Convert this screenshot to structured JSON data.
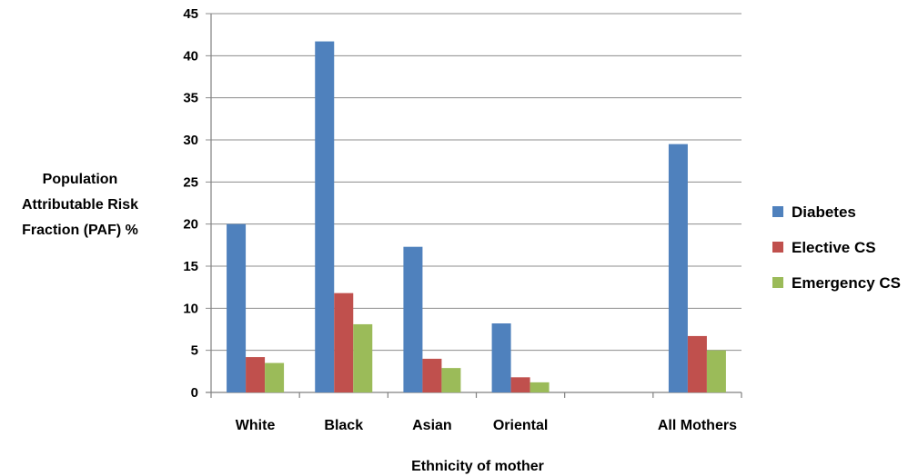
{
  "chart_data": {
    "type": "bar",
    "title": "",
    "categories": [
      "White",
      "Black",
      "Asian",
      "Oriental",
      "",
      "All Mothers"
    ],
    "series": [
      {
        "name": "Diabetes",
        "color": "#4F81BD",
        "values": [
          20.0,
          41.7,
          17.3,
          8.2,
          null,
          29.5
        ]
      },
      {
        "name": "Elective CS",
        "color": "#C0504D",
        "values": [
          4.2,
          11.8,
          4.0,
          1.8,
          null,
          6.7
        ]
      },
      {
        "name": "Emergency CS",
        "color": "#9BBB59",
        "values": [
          3.5,
          8.1,
          2.9,
          1.2,
          null,
          5.0
        ]
      }
    ],
    "xlabel": "Ethnicity of mother",
    "ylabel_lines": [
      "Population",
      "Attributable Risk",
      "Fraction (PAF) %"
    ],
    "ylim": [
      0,
      45
    ],
    "yticks": [
      0,
      5,
      10,
      15,
      20,
      25,
      30,
      35,
      40,
      45
    ],
    "grid": true,
    "legend_position": "right"
  }
}
